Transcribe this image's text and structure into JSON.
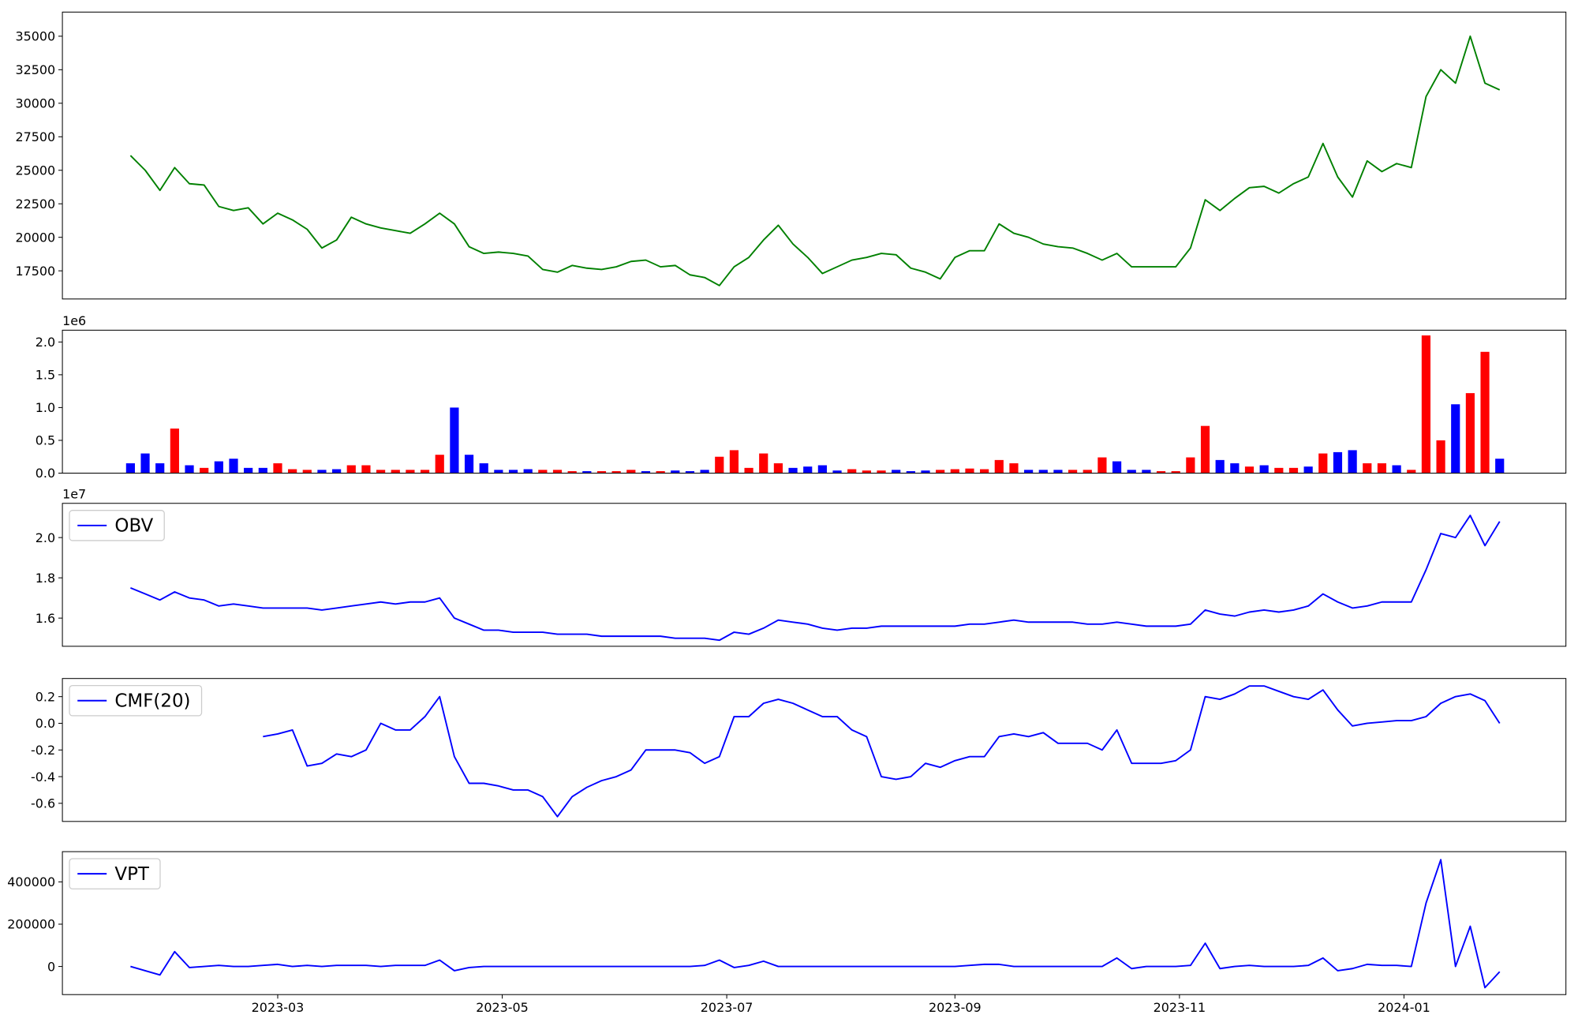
{
  "chart_data": [
    {
      "type": "line",
      "color": "#008000",
      "x": [
        19377,
        19381,
        19385,
        19389,
        19393,
        19397,
        19401,
        19405,
        19409,
        19413,
        19417,
        19421,
        19425,
        19429,
        19433,
        19437,
        19441,
        19445,
        19449,
        19453,
        19457,
        19461,
        19465,
        19469,
        19473,
        19477,
        19481,
        19485,
        19489,
        19493,
        19497,
        19501,
        19505,
        19509,
        19513,
        19517,
        19521,
        19525,
        19529,
        19533,
        19537,
        19541,
        19545,
        19549,
        19553,
        19557,
        19561,
        19565,
        19569,
        19573,
        19577,
        19581,
        19585,
        19589,
        19593,
        19597,
        19601,
        19605,
        19609,
        19613,
        19617,
        19621,
        19625,
        19629,
        19633,
        19637,
        19641,
        19645,
        19649,
        19653,
        19657,
        19661,
        19665,
        19669,
        19673,
        19677,
        19681,
        19685,
        19689,
        19693,
        19697,
        19701,
        19705,
        19709,
        19713,
        19717,
        19721,
        19725,
        19729,
        19733,
        19737,
        19741,
        19745,
        19749
      ],
      "values": [
        26100,
        25000,
        23500,
        25200,
        24000,
        23900,
        22300,
        22000,
        22200,
        21000,
        21800,
        21300,
        20600,
        19200,
        19800,
        21500,
        21000,
        20700,
        20500,
        20300,
        21000,
        21800,
        21000,
        19300,
        18800,
        18900,
        18800,
        18600,
        17600,
        17400,
        17900,
        17700,
        17600,
        17800,
        18200,
        18300,
        17800,
        17900,
        17200,
        17000,
        16400,
        17800,
        18500,
        19800,
        20900,
        19500,
        18500,
        17300,
        17800,
        18300,
        18500,
        18800,
        18700,
        17700,
        17400,
        16900,
        18500,
        19000,
        19000,
        21000,
        20300,
        20000,
        19500,
        19300,
        19200,
        18800,
        18300,
        18800,
        17800,
        17800,
        17800,
        17800,
        19200,
        22800,
        22000,
        22900,
        23700,
        23800,
        23300,
        24000,
        24500,
        27000,
        24500,
        23000,
        25700,
        24900,
        25500,
        25200,
        30500,
        32500,
        31500,
        35000,
        31500,
        31000
      ],
      "xlim": [
        19358.5,
        19767
      ],
      "ylim": [
        15400,
        36800
      ],
      "yticks": [
        17500,
        20000,
        22500,
        25000,
        27500,
        30000,
        32500,
        35000
      ]
    },
    {
      "type": "bar",
      "y_offset": "1e6",
      "x": [
        19377,
        19381,
        19385,
        19389,
        19393,
        19397,
        19401,
        19405,
        19409,
        19413,
        19417,
        19421,
        19425,
        19429,
        19433,
        19437,
        19441,
        19445,
        19449,
        19453,
        19457,
        19461,
        19465,
        19469,
        19473,
        19477,
        19481,
        19485,
        19489,
        19493,
        19497,
        19501,
        19505,
        19509,
        19513,
        19517,
        19521,
        19525,
        19529,
        19533,
        19537,
        19541,
        19545,
        19549,
        19553,
        19557,
        19561,
        19565,
        19569,
        19573,
        19577,
        19581,
        19585,
        19589,
        19593,
        19597,
        19601,
        19605,
        19609,
        19613,
        19617,
        19621,
        19625,
        19629,
        19633,
        19637,
        19641,
        19645,
        19649,
        19653,
        19657,
        19661,
        19665,
        19669,
        19673,
        19677,
        19681,
        19685,
        19689,
        19693,
        19697,
        19701,
        19705,
        19709,
        19713,
        19717,
        19721,
        19725,
        19729,
        19733,
        19737,
        19741,
        19745,
        19749
      ],
      "values": [
        0.15,
        0.3,
        0.15,
        0.68,
        0.12,
        0.08,
        0.18,
        0.22,
        0.08,
        0.08,
        0.15,
        0.06,
        0.05,
        0.05,
        0.06,
        0.12,
        0.12,
        0.05,
        0.05,
        0.05,
        0.05,
        0.28,
        1.0,
        0.28,
        0.15,
        0.05,
        0.05,
        0.06,
        0.05,
        0.05,
        0.03,
        0.03,
        0.03,
        0.03,
        0.05,
        0.03,
        0.03,
        0.04,
        0.03,
        0.05,
        0.25,
        0.35,
        0.08,
        0.3,
        0.15,
        0.08,
        0.1,
        0.12,
        0.04,
        0.06,
        0.04,
        0.04,
        0.05,
        0.03,
        0.04,
        0.05,
        0.06,
        0.07,
        0.06,
        0.2,
        0.15,
        0.05,
        0.05,
        0.05,
        0.05,
        0.05,
        0.24,
        0.18,
        0.05,
        0.05,
        0.03,
        0.03,
        0.24,
        0.72,
        0.2,
        0.15,
        0.1,
        0.12,
        0.08,
        0.08,
        0.1,
        0.3,
        0.32,
        0.35,
        0.15,
        0.15,
        0.12,
        0.05,
        2.1,
        0.5,
        1.05,
        1.22,
        1.85,
        0.22
      ],
      "colors": [
        "blue",
        "blue",
        "blue",
        "red",
        "blue",
        "red",
        "blue",
        "blue",
        "blue",
        "blue",
        "red",
        "red",
        "red",
        "blue",
        "blue",
        "red",
        "red",
        "red",
        "red",
        "red",
        "red",
        "red",
        "blue",
        "blue",
        "blue",
        "blue",
        "blue",
        "blue",
        "red",
        "red",
        "red",
        "blue",
        "red",
        "red",
        "red",
        "blue",
        "red",
        "blue",
        "blue",
        "blue",
        "red",
        "red",
        "red",
        "red",
        "red",
        "blue",
        "blue",
        "blue",
        "blue",
        "red",
        "red",
        "red",
        "blue",
        "blue",
        "blue",
        "red",
        "red",
        "red",
        "red",
        "red",
        "red",
        "blue",
        "blue",
        "blue",
        "red",
        "red",
        "red",
        "blue",
        "blue",
        "blue",
        "red",
        "red",
        "red",
        "red",
        "blue",
        "blue",
        "red",
        "blue",
        "red",
        "red",
        "blue",
        "red",
        "blue",
        "blue",
        "red",
        "red",
        "blue",
        "red",
        "red",
        "red",
        "blue",
        "red",
        "red",
        "blue"
      ],
      "xlim": [
        19358.5,
        19767
      ],
      "ylim": [
        0,
        2.18
      ],
      "yticks": [
        {
          "value": 0,
          "label": "0.0"
        },
        0.5,
        {
          "value": 1,
          "label": "1.0"
        },
        1.5,
        {
          "value": 2,
          "label": "2.0"
        }
      ]
    },
    {
      "type": "line",
      "y_offset": "1e7",
      "legend": "upper left",
      "x": [
        19377,
        19381,
        19385,
        19389,
        19393,
        19397,
        19401,
        19405,
        19409,
        19413,
        19417,
        19421,
        19425,
        19429,
        19433,
        19437,
        19441,
        19445,
        19449,
        19453,
        19457,
        19461,
        19465,
        19469,
        19473,
        19477,
        19481,
        19485,
        19489,
        19493,
        19497,
        19501,
        19505,
        19509,
        19513,
        19517,
        19521,
        19525,
        19529,
        19533,
        19537,
        19541,
        19545,
        19549,
        19553,
        19557,
        19561,
        19565,
        19569,
        19573,
        19577,
        19581,
        19585,
        19589,
        19593,
        19597,
        19601,
        19605,
        19609,
        19613,
        19617,
        19621,
        19625,
        19629,
        19633,
        19637,
        19641,
        19645,
        19649,
        19653,
        19657,
        19661,
        19665,
        19669,
        19673,
        19677,
        19681,
        19685,
        19689,
        19693,
        19697,
        19701,
        19705,
        19709,
        19713,
        19717,
        19721,
        19725,
        19729,
        19733,
        19737,
        19741,
        19745,
        19749
      ],
      "series": [
        {
          "name": "OBV",
          "color": "blue",
          "values": [
            1.75,
            1.72,
            1.69,
            1.73,
            1.7,
            1.69,
            1.66,
            1.67,
            1.66,
            1.65,
            1.65,
            1.65,
            1.65,
            1.64,
            1.65,
            1.66,
            1.67,
            1.68,
            1.67,
            1.68,
            1.68,
            1.7,
            1.6,
            1.57,
            1.54,
            1.54,
            1.53,
            1.53,
            1.53,
            1.52,
            1.52,
            1.52,
            1.51,
            1.51,
            1.51,
            1.51,
            1.51,
            1.5,
            1.5,
            1.5,
            1.49,
            1.53,
            1.52,
            1.55,
            1.59,
            1.58,
            1.57,
            1.55,
            1.54,
            1.55,
            1.55,
            1.56,
            1.56,
            1.56,
            1.56,
            1.56,
            1.56,
            1.57,
            1.57,
            1.58,
            1.59,
            1.58,
            1.58,
            1.58,
            1.58,
            1.57,
            1.57,
            1.58,
            1.57,
            1.56,
            1.56,
            1.56,
            1.57,
            1.64,
            1.62,
            1.61,
            1.63,
            1.64,
            1.63,
            1.64,
            1.66,
            1.72,
            1.68,
            1.65,
            1.66,
            1.68,
            1.68,
            1.68,
            1.84,
            2.02,
            2.0,
            2.11,
            1.96,
            2.08
          ]
        }
      ],
      "xlim": [
        19358.5,
        19767
      ],
      "ylim": [
        1.46,
        2.17
      ],
      "yticks": [
        1.6,
        1.8,
        {
          "value": 2,
          "label": "2.0"
        }
      ]
    },
    {
      "type": "line",
      "legend": "upper left",
      "x": [
        19377,
        19381,
        19385,
        19389,
        19393,
        19397,
        19401,
        19405,
        19409,
        19413,
        19417,
        19421,
        19425,
        19429,
        19433,
        19437,
        19441,
        19445,
        19449,
        19453,
        19457,
        19461,
        19465,
        19469,
        19473,
        19477,
        19481,
        19485,
        19489,
        19493,
        19497,
        19501,
        19505,
        19509,
        19513,
        19517,
        19521,
        19525,
        19529,
        19533,
        19537,
        19541,
        19545,
        19549,
        19553,
        19557,
        19561,
        19565,
        19569,
        19573,
        19577,
        19581,
        19585,
        19589,
        19593,
        19597,
        19601,
        19605,
        19609,
        19613,
        19617,
        19621,
        19625,
        19629,
        19633,
        19637,
        19641,
        19645,
        19649,
        19653,
        19657,
        19661,
        19665,
        19669,
        19673,
        19677,
        19681,
        19685,
        19689,
        19693,
        19697,
        19701,
        19705,
        19709,
        19713,
        19717,
        19721,
        19725,
        19729,
        19733,
        19737,
        19741,
        19745,
        19749
      ],
      "series": [
        {
          "name": "CMF(20)",
          "color": "blue",
          "values": [
            null,
            null,
            null,
            null,
            null,
            null,
            null,
            null,
            null,
            -0.1,
            -0.08,
            -0.05,
            -0.32,
            -0.3,
            -0.23,
            -0.25,
            -0.2,
            0,
            -0.05,
            -0.05,
            0.05,
            0.2,
            -0.25,
            -0.45,
            -0.45,
            -0.47,
            -0.5,
            -0.5,
            -0.55,
            -0.7,
            -0.55,
            -0.48,
            -0.43,
            -0.4,
            -0.35,
            -0.2,
            -0.2,
            -0.2,
            -0.22,
            -0.3,
            -0.25,
            0.05,
            0.05,
            0.15,
            0.18,
            0.15,
            0.1,
            0.05,
            0.05,
            -0.05,
            -0.1,
            -0.4,
            -0.42,
            -0.4,
            -0.3,
            -0.33,
            -0.28,
            -0.25,
            -0.25,
            -0.1,
            -0.08,
            -0.1,
            -0.07,
            -0.15,
            -0.15,
            -0.15,
            -0.2,
            -0.05,
            -0.3,
            -0.3,
            -0.3,
            -0.28,
            -0.2,
            0.2,
            0.18,
            0.22,
            0.28,
            0.28,
            0.24,
            0.2,
            0.18,
            0.25,
            0.1,
            -0.02,
            0,
            0.01,
            0.02,
            0.02,
            0.05,
            0.15,
            0.2,
            0.22,
            0.17,
            0
          ]
        }
      ],
      "xlim": [
        19358.5,
        19767
      ],
      "ylim": [
        -0.736,
        0.336
      ],
      "yticks": [
        -0.6,
        -0.4,
        -0.2,
        {
          "value": 0,
          "label": "0.0"
        },
        0.2
      ]
    },
    {
      "type": "line",
      "legend": "upper left",
      "x": [
        19377,
        19381,
        19385,
        19389,
        19393,
        19397,
        19401,
        19405,
        19409,
        19413,
        19417,
        19421,
        19425,
        19429,
        19433,
        19437,
        19441,
        19445,
        19449,
        19453,
        19457,
        19461,
        19465,
        19469,
        19473,
        19477,
        19481,
        19485,
        19489,
        19493,
        19497,
        19501,
        19505,
        19509,
        19513,
        19517,
        19521,
        19525,
        19529,
        19533,
        19537,
        19541,
        19545,
        19549,
        19553,
        19557,
        19561,
        19565,
        19569,
        19573,
        19577,
        19581,
        19585,
        19589,
        19593,
        19597,
        19601,
        19605,
        19609,
        19613,
        19617,
        19621,
        19625,
        19629,
        19633,
        19637,
        19641,
        19645,
        19649,
        19653,
        19657,
        19661,
        19665,
        19669,
        19673,
        19677,
        19681,
        19685,
        19689,
        19693,
        19697,
        19701,
        19705,
        19709,
        19713,
        19717,
        19721,
        19725,
        19729,
        19733,
        19737,
        19741,
        19745,
        19749
      ],
      "series": [
        {
          "name": "VPT",
          "color": "blue",
          "values": [
            0,
            -20000,
            -40000,
            70000,
            -5000,
            0,
            5000,
            0,
            0,
            5000,
            10000,
            0,
            5000,
            0,
            5000,
            5000,
            5000,
            0,
            5000,
            5000,
            5000,
            30000,
            -20000,
            -5000,
            0,
            0,
            0,
            0,
            0,
            0,
            0,
            0,
            0,
            0,
            0,
            0,
            0,
            0,
            0,
            5000,
            30000,
            -5000,
            5000,
            25000,
            0,
            0,
            0,
            0,
            0,
            0,
            0,
            0,
            0,
            0,
            0,
            0,
            0,
            5000,
            10000,
            10000,
            0,
            0,
            0,
            0,
            0,
            0,
            0,
            40000,
            -10000,
            0,
            0,
            0,
            5000,
            110000,
            -10000,
            0,
            5000,
            0,
            0,
            0,
            5000,
            40000,
            -20000,
            -10000,
            10000,
            5000,
            5000,
            0,
            300000,
            505000,
            0,
            190000,
            -100000,
            -25000
          ]
        }
      ],
      "xlim": [
        19358.5,
        19767
      ],
      "ylim": [
        -133000,
        543000
      ],
      "yticks": [
        0,
        200000,
        400000
      ],
      "xticks": [
        {
          "value": 19417,
          "label": "2023-03"
        },
        {
          "value": 19478,
          "label": "2023-05"
        },
        {
          "value": 19539,
          "label": "2023-07"
        },
        {
          "value": 19601,
          "label": "2023-09"
        },
        {
          "value": 19662,
          "label": "2023-11"
        },
        {
          "value": 19723,
          "label": "2024-01"
        }
      ]
    }
  ]
}
